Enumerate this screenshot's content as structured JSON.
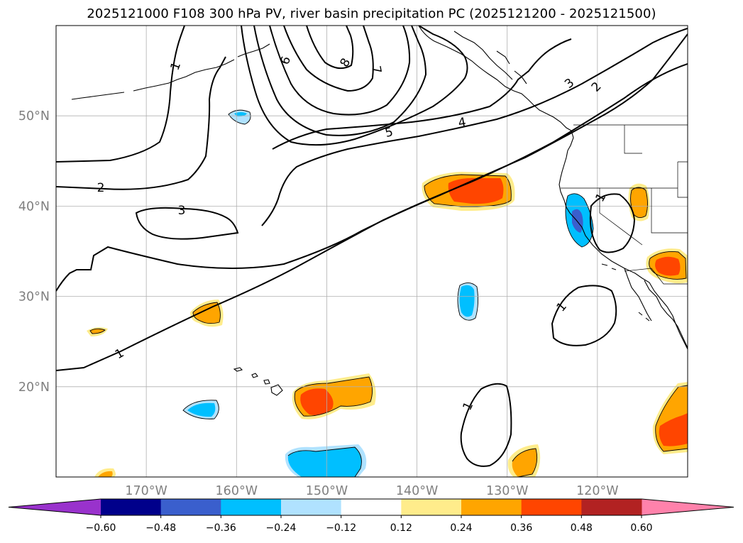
{
  "title": "2025121000 F108 300 hPa PV, river basin precipitation PC (2025121200 - 2025121500)",
  "map": {
    "projection": "PlateCarree",
    "extent": {
      "lon": [
        -180,
        -110
      ],
      "lat": [
        10,
        60
      ]
    },
    "lon_ticks": [
      {
        "value": -170,
        "label": "170°W"
      },
      {
        "value": -160,
        "label": "160°W"
      },
      {
        "value": -150,
        "label": "150°W"
      },
      {
        "value": -140,
        "label": "140°W"
      },
      {
        "value": -130,
        "label": "130°W"
      },
      {
        "value": -120,
        "label": "120°W"
      }
    ],
    "lat_ticks": [
      {
        "value": 50,
        "label": "50°N"
      },
      {
        "value": 40,
        "label": "40°N"
      },
      {
        "value": 30,
        "label": "30°N"
      },
      {
        "value": 20,
        "label": "20°N"
      }
    ],
    "grid": true,
    "pv_contour_labels": [
      "1",
      "2",
      "3",
      "4",
      "5",
      "6",
      "7",
      "8"
    ]
  },
  "colorbar": {
    "extend": "both",
    "levels": [
      -0.6,
      -0.48,
      -0.36,
      -0.24,
      -0.12,
      0.12,
      0.24,
      0.36,
      0.48,
      0.6
    ],
    "tick_labels": [
      "−0.60",
      "−0.48",
      "−0.36",
      "−0.24",
      "−0.12",
      "0.12",
      "0.24",
      "0.36",
      "0.48",
      "0.60"
    ],
    "colors": [
      "#9932cc",
      "#00008b",
      "#3a5fcd",
      "#00bfff",
      "#b0e2ff",
      "#ffffff",
      "#ffec8b",
      "#ffa500",
      "#ff4500",
      "#b22222",
      "#ff82ab"
    ]
  }
}
